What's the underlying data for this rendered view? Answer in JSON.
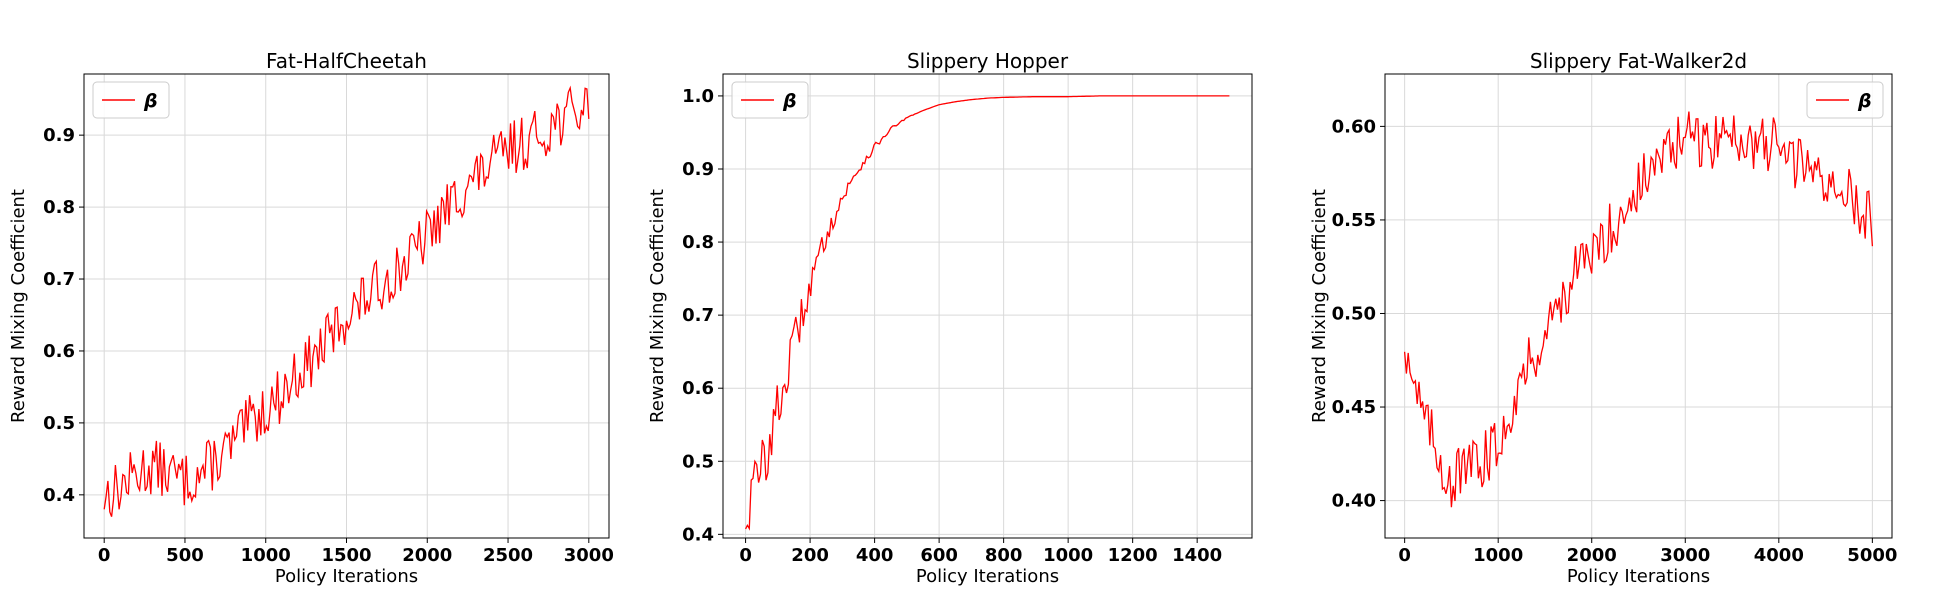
{
  "colors": {
    "series": "#ff0000",
    "grid": "#d9d9d9",
    "axis": "#000000"
  },
  "chart_data": [
    {
      "type": "line",
      "title": "Fat-HalfCheetah",
      "xlabel": "Policy Iterations",
      "ylabel": "Reward Mixing Coefficient",
      "xlim": [
        -125,
        3125
      ],
      "ylim": [
        0.34,
        0.985
      ],
      "xticks": [
        0,
        500,
        1000,
        1500,
        2000,
        2500,
        3000
      ],
      "yticks": [
        0.4,
        0.5,
        0.6,
        0.7,
        0.8,
        0.9
      ],
      "ytick_labels": [
        "0.4",
        "0.5",
        "0.6",
        "0.7",
        "0.8",
        "0.9"
      ],
      "grid": true,
      "legend": "top-left",
      "series": [
        {
          "name": "β",
          "color": "#ff0000",
          "x": [
            0,
            100,
            200,
            300,
            400,
            500,
            600,
            700,
            800,
            900,
            1000,
            1100,
            1200,
            1300,
            1400,
            1500,
            1600,
            1700,
            1800,
            1900,
            2000,
            2100,
            2200,
            2300,
            2400,
            2500,
            2600,
            2700,
            2800,
            2900,
            3000
          ],
          "y": [
            0.4,
            0.41,
            0.43,
            0.44,
            0.43,
            0.42,
            0.43,
            0.45,
            0.47,
            0.5,
            0.52,
            0.54,
            0.57,
            0.59,
            0.62,
            0.65,
            0.67,
            0.69,
            0.71,
            0.73,
            0.76,
            0.79,
            0.82,
            0.84,
            0.86,
            0.88,
            0.89,
            0.9,
            0.92,
            0.93,
            0.94
          ]
        }
      ]
    },
    {
      "type": "line",
      "title": "Slippery Hopper",
      "xlabel": "Policy Iterations",
      "ylabel": "Reward Mixing Coefficient",
      "xlim": [
        -70,
        1570
      ],
      "ylim": [
        0.395,
        1.03
      ],
      "xticks": [
        0,
        200,
        400,
        600,
        800,
        1000,
        1200,
        1400
      ],
      "yticks": [
        0.4,
        0.5,
        0.6,
        0.7,
        0.8,
        0.9,
        1.0
      ],
      "ytick_labels": [
        "0.4",
        "0.5",
        "0.6",
        "0.7",
        "0.8",
        "0.9",
        "1.0"
      ],
      "grid": true,
      "legend": "top-left",
      "series": [
        {
          "name": "β",
          "color": "#ff0000",
          "x": [
            0,
            50,
            100,
            150,
            200,
            250,
            300,
            350,
            400,
            450,
            500,
            550,
            600,
            650,
            700,
            750,
            800,
            900,
            1000,
            1100,
            1200,
            1300,
            1400,
            1500
          ],
          "y": [
            0.43,
            0.49,
            0.57,
            0.66,
            0.74,
            0.81,
            0.86,
            0.9,
            0.93,
            0.955,
            0.97,
            0.98,
            0.988,
            0.992,
            0.995,
            0.997,
            0.998,
            0.999,
            0.999,
            1.0,
            1.0,
            1.0,
            1.0,
            1.0
          ]
        }
      ]
    },
    {
      "type": "line",
      "title": "Slippery Fat-Walker2d",
      "xlabel": "Policy Iterations",
      "ylabel": "Reward Mixing Coefficient",
      "xlim": [
        -210,
        5210
      ],
      "ylim": [
        0.38,
        0.628
      ],
      "xticks": [
        0,
        1000,
        2000,
        3000,
        4000,
        5000
      ],
      "yticks": [
        0.4,
        0.45,
        0.5,
        0.55,
        0.6
      ],
      "ytick_labels": [
        "0.40",
        "0.45",
        "0.50",
        "0.55",
        "0.60"
      ],
      "grid": true,
      "legend": "top-right",
      "series": [
        {
          "name": "β",
          "color": "#ff0000",
          "x": [
            0,
            200,
            400,
            500,
            600,
            800,
            1000,
            1200,
            1400,
            1600,
            1800,
            2000,
            2200,
            2400,
            2600,
            2800,
            3000,
            3200,
            3400,
            3600,
            3800,
            4000,
            4200,
            4400,
            4600,
            4800,
            5000
          ],
          "y": [
            0.485,
            0.445,
            0.42,
            0.41,
            0.415,
            0.42,
            0.43,
            0.46,
            0.48,
            0.5,
            0.52,
            0.53,
            0.545,
            0.56,
            0.575,
            0.585,
            0.595,
            0.59,
            0.595,
            0.595,
            0.59,
            0.59,
            0.58,
            0.575,
            0.57,
            0.56,
            0.55
          ]
        }
      ]
    }
  ]
}
